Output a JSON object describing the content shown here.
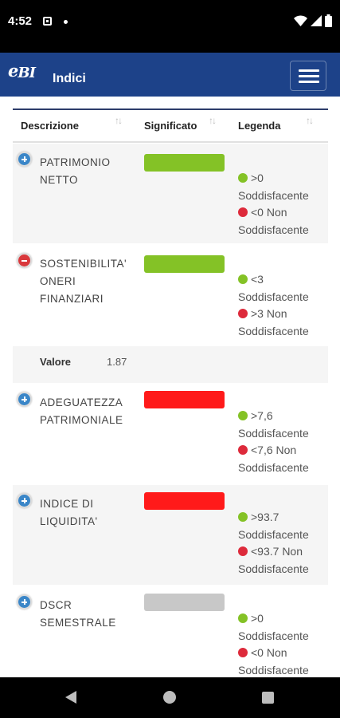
{
  "status_bar": {
    "time": "4:52"
  },
  "app_bar": {
    "logo_e": "e",
    "logo_bi": "BI",
    "title": "Indici"
  },
  "table": {
    "headers": {
      "descrizione": "Descrizione",
      "significato": "Significato",
      "legenda": "Legenda"
    },
    "sort_glyph": "↑↓",
    "rows": [
      {
        "description": "PATRIMONIO NETTO",
        "expanded": false,
        "status_color": "#84c226",
        "legend_good": ">0 Soddisfacente",
        "legend_bad": "<0 Non Soddisfacente"
      },
      {
        "description": "SOSTENIBILITA' ONERI FINANZIARI",
        "expanded": true,
        "status_color": "#84c226",
        "legend_good": "<3 Soddisfacente",
        "legend_bad": ">3 Non Soddisfacente"
      },
      {
        "description": "ADEGUATEZZA PATRIMONIALE",
        "expanded": false,
        "status_color": "#ff1a1a",
        "legend_good": ">7,6 Soddisfacente",
        "legend_bad": "<7,6 Non Soddisfacente"
      },
      {
        "description": "INDICE DI LIQUIDITA'",
        "expanded": false,
        "status_color": "#ff1a1a",
        "legend_good": ">93.7 Soddisfacente",
        "legend_bad": "<93.7 Non Soddisfacente"
      },
      {
        "description": "DSCR SEMESTRALE",
        "expanded": false,
        "status_color": "#c8c8c8",
        "legend_good": ">0 Soddisfacente",
        "legend_bad": "<0 Non Soddisfacente"
      }
    ],
    "detail": {
      "label": "Valore",
      "value": "1.87"
    }
  },
  "colors": {
    "app_bar": "#1d4289",
    "legend_good": "#84c226",
    "legend_bad": "#dd2a3b",
    "toggle_expand": "#3a86c8",
    "toggle_collapse": "#d9383c"
  },
  "icons": {
    "status": [
      "sim-card-icon",
      "notification-dot-icon",
      "wifi-icon",
      "signal-icon",
      "battery-icon"
    ],
    "menu": "hamburger-menu-icon",
    "navigation": [
      "back-icon",
      "home-icon",
      "recents-icon"
    ]
  }
}
